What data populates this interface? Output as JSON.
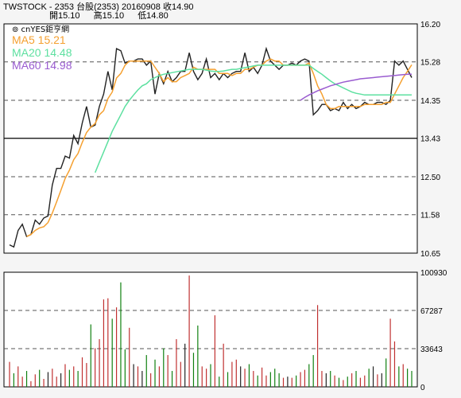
{
  "header": {
    "line1": "TWSTOCK - 2353 台股(2353) 20160908 收14.90",
    "open": "開15.10",
    "high": "高15.10",
    "low": "低14.80"
  },
  "brand": "⊚ cnYES鉅亨網",
  "colors": {
    "price": "#222222",
    "ma5": "#f5a030",
    "ma20": "#5de0a0",
    "ma60": "#9a5cd0",
    "volUp": "#c03030",
    "volDown": "#108010",
    "volFlat": "#222222"
  },
  "chart_data": [
    {
      "type": "line",
      "title": "TWSTOCK - 2353 台股(2353) 20160908",
      "ylim": [
        10.65,
        16.2
      ],
      "yticks": [
        "16.20",
        "15.28",
        "14.35",
        "13.43",
        "12.50",
        "11.58",
        "10.65"
      ],
      "series": [
        {
          "name": "Close",
          "values": [
            10.85,
            10.8,
            11.2,
            11.35,
            11.05,
            11.1,
            11.45,
            11.35,
            11.5,
            11.55,
            12.3,
            12.7,
            12.7,
            13.0,
            12.95,
            13.5,
            13.3,
            13.8,
            14.2,
            13.7,
            13.75,
            14.2,
            14.5,
            15.05,
            14.6,
            15.6,
            15.55,
            15.25,
            15.3,
            15.3,
            15.35,
            15.35,
            15.2,
            15.3,
            14.5,
            15.0,
            14.75,
            15.05,
            14.8,
            14.9,
            15.05,
            15.05,
            15.5,
            15.05,
            14.85,
            15.0,
            15.35,
            14.9,
            15.0,
            14.85,
            15.0,
            14.9,
            15.0,
            15.05,
            15.05,
            15.5,
            15.05,
            15.15,
            15.0,
            15.2,
            15.6,
            15.3,
            15.2,
            15.1,
            15.2,
            15.2,
            15.25,
            15.2,
            15.3,
            15.35,
            15.3,
            14.0,
            14.1,
            14.25,
            14.25,
            14.1,
            14.15,
            14.1,
            14.3,
            14.15,
            14.25,
            14.15,
            14.2,
            14.3,
            14.25,
            14.25,
            14.3,
            14.3,
            14.25,
            14.35,
            15.3,
            15.2,
            15.3,
            15.1,
            14.9
          ]
        },
        {
          "name": "MA5 15.21",
          "values": [
            null,
            null,
            null,
            null,
            11.05,
            11.1,
            11.2,
            11.26,
            11.29,
            11.39,
            11.62,
            11.89,
            12.17,
            12.46,
            12.66,
            12.91,
            13.06,
            13.33,
            13.57,
            13.7,
            13.79,
            14.0,
            14.1,
            14.39,
            14.55,
            14.89,
            15.0,
            15.2,
            15.3,
            15.3,
            15.3,
            15.3,
            15.3,
            15.3,
            15.15,
            15.0,
            14.8,
            14.9,
            14.8,
            14.8,
            14.9,
            14.95,
            15.0,
            15.15,
            15.1,
            15.1,
            15.1,
            15.1,
            15.1,
            15.0,
            15.0,
            15.0,
            14.95,
            15.0,
            15.0,
            15.1,
            15.1,
            15.15,
            15.2,
            15.2,
            15.3,
            15.35,
            15.3,
            15.3,
            15.2,
            15.2,
            15.2,
            15.2,
            15.2,
            15.2,
            15.25,
            15.0,
            14.7,
            14.5,
            14.25,
            14.15,
            14.15,
            14.2,
            14.2,
            14.2,
            14.2,
            14.2,
            14.2,
            14.25,
            14.25,
            14.25,
            14.25,
            14.25,
            14.3,
            14.3,
            14.5,
            14.7,
            14.9,
            15.05,
            15.21
          ]
        },
        {
          "name": "MA20 14.48",
          "values": [
            null,
            null,
            null,
            null,
            null,
            null,
            null,
            null,
            null,
            null,
            null,
            null,
            null,
            null,
            null,
            null,
            null,
            null,
            null,
            null,
            12.6,
            12.85,
            13.1,
            13.35,
            13.6,
            13.8,
            14.0,
            14.2,
            14.35,
            14.48,
            14.6,
            14.7,
            14.75,
            14.85,
            14.9,
            14.95,
            14.98,
            15.0,
            15.02,
            15.04,
            15.06,
            15.08,
            15.1,
            15.1,
            15.1,
            15.1,
            15.08,
            15.06,
            15.05,
            15.05,
            15.06,
            15.08,
            15.1,
            15.1,
            15.12,
            15.14,
            15.16,
            15.18,
            15.2,
            15.2,
            15.2,
            15.2,
            15.2,
            15.2,
            15.2,
            15.2,
            15.2,
            15.2,
            15.2,
            15.2,
            15.2,
            15.12,
            15.05,
            14.98,
            14.9,
            14.82,
            14.75,
            14.7,
            14.65,
            14.6,
            14.55,
            14.52,
            14.5,
            14.48,
            14.48,
            14.48,
            14.48,
            14.48,
            14.48,
            14.48,
            14.48,
            14.48,
            14.48,
            14.48,
            14.48
          ]
        },
        {
          "name": "MA60 14.98",
          "values": [
            null,
            null,
            null,
            null,
            null,
            null,
            null,
            null,
            null,
            null,
            null,
            null,
            null,
            null,
            null,
            null,
            null,
            null,
            null,
            null,
            null,
            null,
            null,
            null,
            null,
            null,
            null,
            null,
            null,
            null,
            null,
            null,
            null,
            null,
            null,
            null,
            null,
            null,
            null,
            null,
            null,
            null,
            null,
            null,
            null,
            null,
            null,
            null,
            null,
            null,
            null,
            null,
            null,
            null,
            null,
            null,
            null,
            null,
            null,
            null,
            null,
            null,
            null,
            null,
            null,
            null,
            null,
            null,
            14.35,
            14.42,
            14.48,
            14.53,
            14.58,
            14.62,
            14.66,
            14.7,
            14.73,
            14.76,
            14.79,
            14.81,
            14.83,
            14.85,
            14.87,
            14.88,
            14.89,
            14.9,
            14.91,
            14.92,
            14.93,
            14.94,
            14.95,
            14.96,
            14.97,
            14.98,
            14.98
          ]
        }
      ]
    },
    {
      "type": "bar",
      "ylim": [
        0,
        100930
      ],
      "yticks": [
        "100930",
        "67287",
        "33643",
        "0"
      ],
      "series": [
        {
          "name": "Volume",
          "values": [
            22000,
            12000,
            18000,
            9000,
            14000,
            5000,
            11000,
            15000,
            7000,
            13000,
            16000,
            9000,
            12000,
            20000,
            15000,
            18000,
            14000,
            26000,
            21000,
            55000,
            34000,
            42000,
            77000,
            78000,
            60000,
            70000,
            92000,
            33000,
            52000,
            20000,
            18000,
            14000,
            28000,
            12000,
            24000,
            18000,
            34000,
            28000,
            14000,
            42000,
            22000,
            38000,
            98000,
            30000,
            54000,
            18000,
            16000,
            20000,
            63000,
            9000,
            38000,
            13000,
            22000,
            24000,
            18000,
            16000,
            20000,
            14000,
            10000,
            17000,
            10000,
            13000,
            16000,
            12000,
            8000,
            9000,
            8000,
            10000,
            13000,
            15000,
            20000,
            28000,
            72000,
            14000,
            12000,
            14000,
            10000,
            8000,
            6000,
            9000,
            12000,
            14000,
            8000,
            10000,
            16000,
            18000,
            11000,
            12000,
            25000,
            60000,
            40000,
            18000,
            20000,
            16000,
            14000
          ],
          "dir": [
            1,
            -1,
            1,
            1,
            -1,
            1,
            1,
            -1,
            1,
            0,
            1,
            1,
            0,
            1,
            -1,
            1,
            -1,
            1,
            1,
            -1,
            1,
            1,
            1,
            1,
            -1,
            1,
            -1,
            -1,
            1,
            0,
            1,
            0,
            -1,
            1,
            -1,
            1,
            -1,
            1,
            -1,
            1,
            1,
            0,
            1,
            -1,
            -1,
            1,
            1,
            -1,
            1,
            -1,
            1,
            -1,
            1,
            1,
            0,
            1,
            -1,
            1,
            -1,
            1,
            1,
            -1,
            -1,
            -1,
            1,
            0,
            1,
            -1,
            1,
            1,
            -1,
            -1,
            1,
            1,
            0,
            -1,
            1,
            -1,
            1,
            -1,
            1,
            -1,
            1,
            1,
            -1,
            0,
            1,
            0,
            -1,
            1,
            1,
            -1,
            1,
            -1,
            -1
          ]
        }
      ]
    }
  ]
}
